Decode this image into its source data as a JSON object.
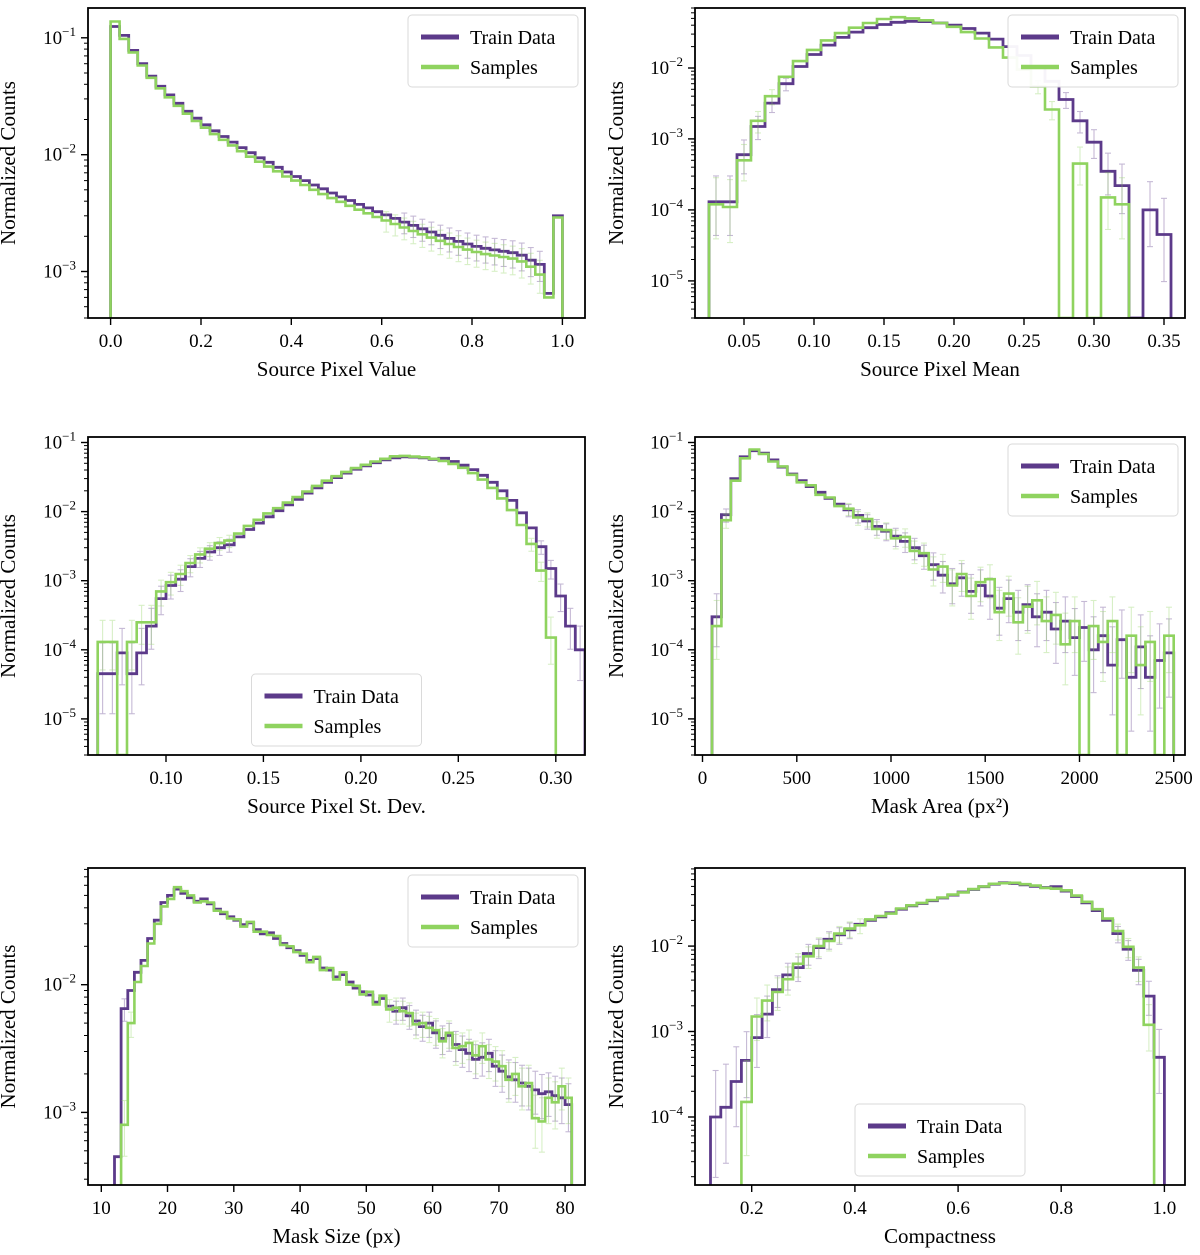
{
  "colors": {
    "train": "#5c3a8a",
    "samples": "#8fd35f",
    "frame": "#000000",
    "legend_border": "#d9d9d9"
  },
  "legend": {
    "entries": [
      "Train Data",
      "Samples"
    ]
  },
  "chart_data": [
    {
      "type": "histogram-step",
      "name": "source-pixel-value",
      "xlabel": "Source Pixel Value",
      "ylabel": "Normalized Counts",
      "xlim": [
        -0.05,
        1.05
      ],
      "ylim": [
        0.0004,
        0.18
      ],
      "yscale": "log",
      "xticks": [
        0.0,
        0.2,
        0.4,
        0.6,
        0.8,
        1.0
      ],
      "xtick_labels": [
        "0.0",
        "0.2",
        "0.4",
        "0.6",
        "0.8",
        "1.0"
      ],
      "legend_position": "upper-right",
      "err_scale": 0.01,
      "first_edge": 0.0,
      "bin_width": 0.02,
      "series": [
        {
          "name": "Train Data",
          "color_key": "train",
          "values": [
            0.125,
            0.105,
            0.078,
            0.06,
            0.047,
            0.0385,
            0.0325,
            0.0275,
            0.0235,
            0.0205,
            0.018,
            0.016,
            0.0143,
            0.0128,
            0.0115,
            0.0104,
            0.0094,
            0.0086,
            0.0078,
            0.0071,
            0.0065,
            0.006,
            0.0055,
            0.0051,
            0.0047,
            0.00435,
            0.00405,
            0.00375,
            0.0035,
            0.00325,
            0.00305,
            0.00285,
            0.00265,
            0.00248,
            0.00232,
            0.00218,
            0.00204,
            0.00192,
            0.00181,
            0.00172,
            0.00164,
            0.00158,
            0.00153,
            0.00149,
            0.00145,
            0.00138,
            0.00125,
            0.00115,
            0.00065,
            0.003
          ]
        },
        {
          "name": "Samples",
          "color_key": "samples",
          "values": [
            0.138,
            0.098,
            0.075,
            0.058,
            0.0455,
            0.037,
            0.031,
            0.0262,
            0.0224,
            0.0194,
            0.017,
            0.015,
            0.0134,
            0.012,
            0.0107,
            0.0096,
            0.0087,
            0.0079,
            0.0072,
            0.0065,
            0.006,
            0.0055,
            0.005,
            0.0046,
            0.00425,
            0.00395,
            0.00365,
            0.00338,
            0.00315,
            0.00293,
            0.00273,
            0.00255,
            0.00238,
            0.00222,
            0.00208,
            0.00195,
            0.00183,
            0.00172,
            0.00162,
            0.00154,
            0.00147,
            0.00141,
            0.00137,
            0.00133,
            0.00129,
            0.00122,
            0.0011,
            0.00094,
            0.0006,
            0.0029
          ]
        }
      ]
    },
    {
      "type": "histogram-step",
      "name": "source-pixel-mean",
      "xlabel": "Source Pixel Mean",
      "ylabel": "Normalized Counts",
      "xlim": [
        0.015,
        0.365
      ],
      "ylim": [
        3e-06,
        0.07
      ],
      "yscale": "log",
      "xticks": [
        0.05,
        0.1,
        0.15,
        0.2,
        0.25,
        0.3,
        0.35
      ],
      "xtick_labels": [
        "0.05",
        "0.10",
        "0.15",
        "0.20",
        "0.25",
        "0.30",
        "0.35"
      ],
      "legend_position": "upper-right",
      "err_scale": 0.015,
      "first_edge": 0.025,
      "bin_width": 0.01,
      "series": [
        {
          "name": "Train Data",
          "color_key": "train",
          "values": [
            0.00013,
            0.00013,
            0.0006,
            0.0015,
            0.0032,
            0.006,
            0.0105,
            0.0155,
            0.021,
            0.027,
            0.032,
            0.037,
            0.041,
            0.044,
            0.0455,
            0.045,
            0.043,
            0.04,
            0.036,
            0.031,
            0.0255,
            0.02,
            0.015,
            0.0105,
            0.0065,
            0.0036,
            0.0018,
            0.0009,
            0.00035,
            0.00022,
            3e-06,
            0.0001,
            4.5e-05
          ]
        },
        {
          "name": "Samples",
          "color_key": "samples",
          "values": [
            0.00012,
            0.00011,
            0.0005,
            0.0018,
            0.004,
            0.0075,
            0.0125,
            0.018,
            0.0245,
            0.031,
            0.037,
            0.043,
            0.049,
            0.052,
            0.05,
            0.047,
            0.043,
            0.038,
            0.032,
            0.026,
            0.0195,
            0.014,
            0.0095,
            0.0055,
            0.0026,
            3e-06,
            0.00045,
            3e-06,
            0.00015,
            0.00012,
            null,
            null,
            null
          ]
        }
      ]
    },
    {
      "type": "histogram-step",
      "name": "source-pixel-st-dev",
      "xlabel": "Source Pixel St. Dev.",
      "ylabel": "Normalized Counts",
      "xlim": [
        0.06,
        0.315
      ],
      "ylim": [
        3e-06,
        0.12
      ],
      "yscale": "log",
      "xticks": [
        0.1,
        0.15,
        0.2,
        0.25,
        0.3
      ],
      "xtick_labels": [
        "0.10",
        "0.15",
        "0.20",
        "0.25",
        "0.30"
      ],
      "legend_position": "lower-center",
      "err_scale": 0.012,
      "first_edge": 0.065,
      "bin_width": 0.005,
      "series": [
        {
          "name": "Train Data",
          "color_key": "train",
          "values": [
            4.5e-05,
            4.5e-05,
            9e-05,
            4.5e-05,
            9e-05,
            0.00022,
            0.00055,
            0.00085,
            0.00105,
            0.0016,
            0.0021,
            0.0026,
            0.003,
            0.0033,
            0.0043,
            0.0055,
            0.0068,
            0.0084,
            0.0103,
            0.0125,
            0.015,
            0.0185,
            0.022,
            0.0265,
            0.031,
            0.036,
            0.041,
            0.046,
            0.051,
            0.056,
            0.06,
            0.062,
            0.0615,
            0.06,
            0.057,
            0.059,
            0.053,
            0.047,
            0.0405,
            0.0335,
            0.0265,
            0.02,
            0.0145,
            0.0096,
            0.0058,
            0.0031,
            0.0015,
            0.0006,
            0.00022,
            0.0001
          ]
        },
        {
          "name": "Samples",
          "color_key": "samples",
          "values": [
            0.00013,
            0.00013,
            3e-06,
            0.00013,
            0.00025,
            0.00025,
            0.0007,
            0.00095,
            0.00125,
            0.0018,
            0.0024,
            0.0029,
            0.0035,
            0.0038,
            0.0048,
            0.0062,
            0.0076,
            0.0094,
            0.0112,
            0.0135,
            0.0162,
            0.0195,
            0.0235,
            0.028,
            0.0325,
            0.0375,
            0.0425,
            0.0475,
            0.053,
            0.058,
            0.063,
            0.064,
            0.0625,
            0.061,
            0.058,
            0.054,
            0.049,
            0.043,
            0.036,
            0.029,
            0.022,
            0.0155,
            0.0105,
            0.0064,
            0.0034,
            0.0014,
            0.00015,
            null,
            null,
            null
          ]
        }
      ]
    },
    {
      "type": "histogram-step",
      "name": "mask-area",
      "xlabel": "Mask Area (px²)",
      "ylabel": "Normalized Counts",
      "xlim": [
        -40,
        2560
      ],
      "ylim": [
        3e-06,
        0.12
      ],
      "yscale": "log",
      "xticks": [
        0,
        500,
        1000,
        1500,
        2000,
        2500
      ],
      "xtick_labels": [
        "0",
        "500",
        "1000",
        "1500",
        "2000",
        "2500"
      ],
      "legend_position": "upper-right",
      "err_scale": 0.02,
      "first_edge": 50,
      "bin_width": 50,
      "series": [
        {
          "name": "Train Data",
          "color_key": "train",
          "values": [
            0.0003,
            0.009,
            0.03,
            0.062,
            0.076,
            0.07,
            0.056,
            0.044,
            0.035,
            0.028,
            0.023,
            0.019,
            0.0155,
            0.0128,
            0.0106,
            0.0088,
            0.0073,
            0.0061,
            0.0052,
            0.0044,
            0.0037,
            0.003,
            0.0023,
            0.0017,
            0.0012,
            0.0009,
            0.0011,
            0.0007,
            0.00085,
            0.0006,
            0.0004,
            0.00055,
            0.00035,
            0.00045,
            0.0003,
            0.00035,
            0.0002,
            0.00026,
            0.00015,
            0.00021,
            0.0001,
            0.00016,
            6e-05,
            0.00014,
            4e-05,
            0.00011,
            4e-05,
            7e-05,
            9e-05
          ]
        },
        {
          "name": "Samples",
          "color_key": "samples",
          "values": [
            0.00022,
            0.0075,
            0.028,
            0.059,
            0.079,
            0.068,
            0.053,
            0.045,
            0.034,
            0.0265,
            0.024,
            0.0175,
            0.016,
            0.012,
            0.011,
            0.0082,
            0.0078,
            0.0056,
            0.0054,
            0.0041,
            0.0043,
            0.0027,
            0.0025,
            0.00145,
            0.0016,
            0.00085,
            0.00125,
            0.0006,
            0.00095,
            0.00105,
            0.00035,
            0.00065,
            0.00025,
            0.00042,
            0.00052,
            0.00026,
            0.00032,
            0.00012,
            0.00026,
            3e-06,
            0.00022,
            0.00013,
            0.00026,
            3e-06,
            0.00016,
            6e-05,
            0.00013,
            3e-06,
            0.00016
          ]
        }
      ]
    },
    {
      "type": "histogram-step",
      "name": "mask-size",
      "xlabel": "Mask Size (px)",
      "ylabel": "Normalized Counts",
      "xlim": [
        8,
        83
      ],
      "ylim": [
        0.00027,
        0.082
      ],
      "yscale": "log",
      "xticks": [
        10,
        20,
        30,
        40,
        50,
        60,
        70,
        80
      ],
      "xtick_labels": [
        "10",
        "20",
        "30",
        "40",
        "50",
        "60",
        "70",
        "80"
      ],
      "legend_position": "upper-right",
      "err_scale": 0.0155,
      "first_edge": 12,
      "bin_width": 1,
      "series": [
        {
          "name": "Train Data",
          "color_key": "train",
          "values": [
            0.00045,
            0.0065,
            0.009,
            0.0125,
            0.0155,
            0.023,
            0.032,
            0.044,
            0.05,
            0.056,
            0.052,
            0.048,
            0.045,
            0.047,
            0.043,
            0.039,
            0.036,
            0.034,
            0.032,
            0.0295,
            0.0305,
            0.027,
            0.025,
            0.0255,
            0.023,
            0.021,
            0.0195,
            0.0185,
            0.017,
            0.0155,
            0.016,
            0.0135,
            0.013,
            0.0115,
            0.012,
            0.0105,
            0.0094,
            0.0088,
            0.0083,
            0.0073,
            0.0078,
            0.0068,
            0.0062,
            0.0066,
            0.0057,
            0.0052,
            0.0047,
            0.005,
            0.0042,
            0.0038,
            0.004,
            0.0034,
            0.0031,
            0.0029,
            0.0026,
            0.0027,
            0.0029,
            0.0023,
            0.0021,
            0.0019,
            0.0018,
            0.0017,
            0.0016,
            0.0015,
            0.0014,
            0.00145,
            0.00135,
            0.0013,
            0.00115
          ]
        },
        {
          "name": "Samples",
          "color_key": "samples",
          "values": [
            null,
            0.0008,
            0.005,
            0.0105,
            0.014,
            0.021,
            0.03,
            0.041,
            0.047,
            0.058,
            0.054,
            0.05,
            0.044,
            0.045,
            0.044,
            0.038,
            0.037,
            0.033,
            0.0325,
            0.0285,
            0.031,
            0.026,
            0.026,
            0.0245,
            0.024,
            0.0205,
            0.02,
            0.018,
            0.0175,
            0.015,
            0.0165,
            0.013,
            0.0135,
            0.011,
            0.0125,
            0.01,
            0.0098,
            0.0084,
            0.0088,
            0.007,
            0.0082,
            0.0064,
            0.0066,
            0.0062,
            0.006,
            0.0049,
            0.005,
            0.0046,
            0.0044,
            0.0036,
            0.0042,
            0.0032,
            0.0033,
            0.0035,
            0.0028,
            0.0033,
            0.0026,
            0.0025,
            0.0023,
            0.0018,
            0.002,
            0.0016,
            0.0017,
            0.0009,
            0.00085,
            0.0013,
            0.0012,
            0.0016,
            0.0013
          ]
        }
      ]
    },
    {
      "type": "histogram-step",
      "name": "compactness",
      "xlabel": "Compactness",
      "ylabel": "Normalized Counts",
      "xlim": [
        0.09,
        1.04
      ],
      "ylim": [
        1.6e-05,
        0.082
      ],
      "yscale": "log",
      "xticks": [
        0.2,
        0.4,
        0.6,
        0.8,
        1.0
      ],
      "xtick_labels": [
        "0.2",
        "0.4",
        "0.6",
        "0.8",
        "1.0"
      ],
      "legend_position": "lower-center",
      "err_scale": 0.025,
      "first_edge": 0.12,
      "bin_width": 0.02,
      "series": [
        {
          "name": "Train Data",
          "color_key": "train",
          "values": [
            0.0001,
            0.00013,
            0.00026,
            0.00046,
            0.00085,
            0.0016,
            0.0031,
            0.0046,
            0.0056,
            0.0082,
            0.0096,
            0.012,
            0.0135,
            0.0155,
            0.018,
            0.02,
            0.022,
            0.0245,
            0.027,
            0.0295,
            0.0315,
            0.034,
            0.0365,
            0.0395,
            0.043,
            0.046,
            0.0495,
            0.053,
            0.055,
            0.054,
            0.052,
            0.05,
            0.0485,
            0.0495,
            0.044,
            0.038,
            0.032,
            0.026,
            0.02,
            0.014,
            0.0092,
            0.0052,
            0.0026,
            0.0005
          ]
        },
        {
          "name": "Samples",
          "color_key": "samples",
          "values": [
            null,
            null,
            null,
            0.00015,
            0.0015,
            0.0023,
            0.0029,
            0.0041,
            0.0062,
            0.0076,
            0.01,
            0.0115,
            0.014,
            0.016,
            0.0175,
            0.0205,
            0.0225,
            0.024,
            0.0275,
            0.03,
            0.032,
            0.0345,
            0.037,
            0.04,
            0.0425,
            0.0465,
            0.05,
            0.0535,
            0.0545,
            0.055,
            0.053,
            0.051,
            0.048,
            0.047,
            0.045,
            0.039,
            0.033,
            0.027,
            0.021,
            0.015,
            0.0098,
            0.0056,
            0.0012,
            null
          ]
        }
      ]
    }
  ]
}
